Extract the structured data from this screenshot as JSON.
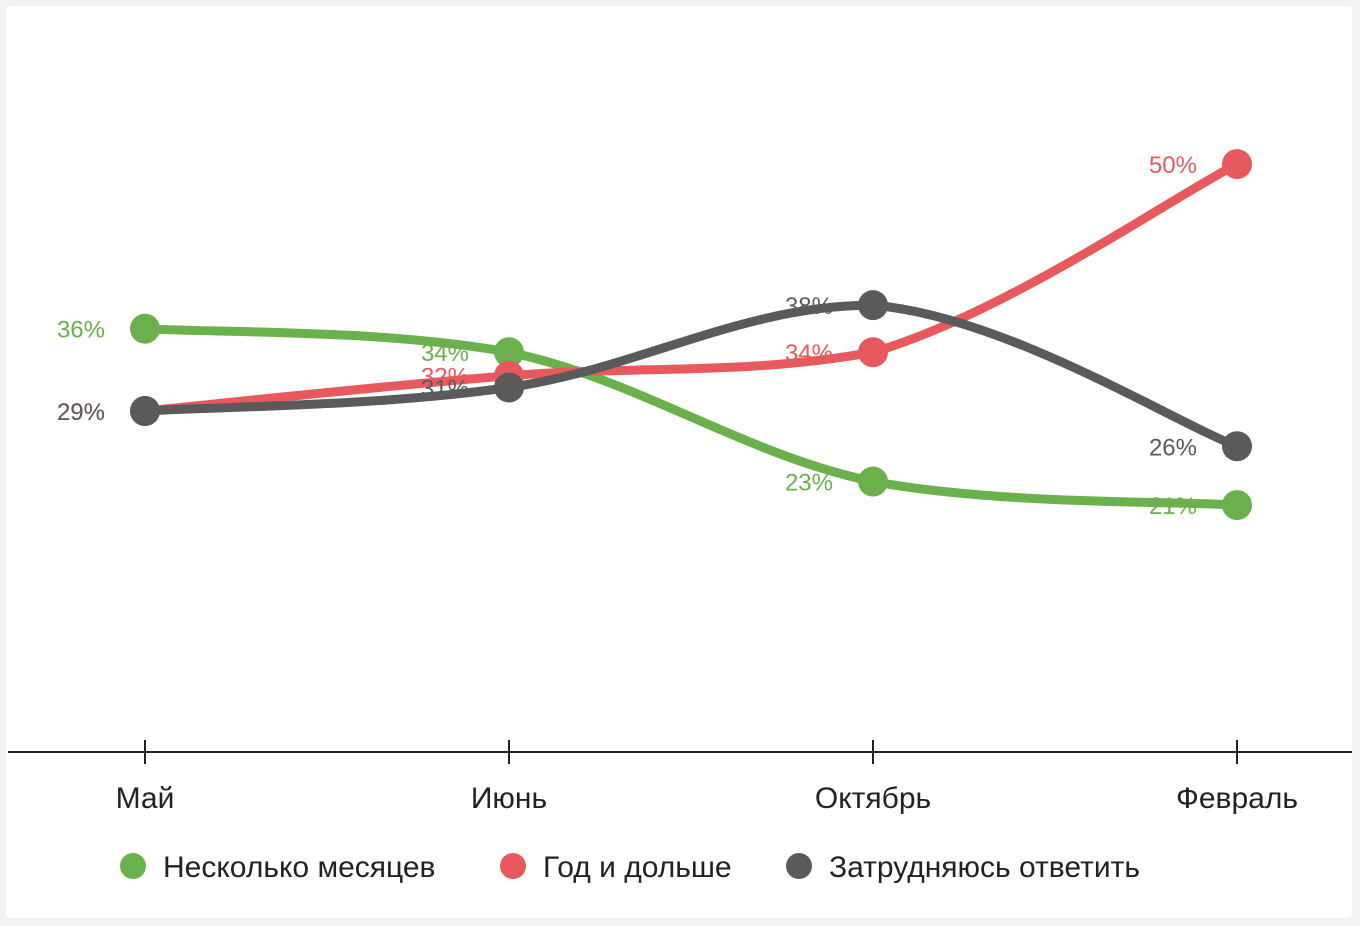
{
  "chart_data": {
    "type": "line",
    "categories": [
      "Май",
      "Июнь",
      "Октябрь",
      "Февраль"
    ],
    "series": [
      {
        "name": "Несколько месяцев",
        "color": "#6ab04c",
        "values": [
          36,
          34,
          23,
          21
        ]
      },
      {
        "name": "Год и дольше",
        "color": "#e8595e",
        "values": [
          29,
          32,
          34,
          50
        ]
      },
      {
        "name": "Затрудняюсь ответить",
        "color": "#5a5a5a",
        "values": [
          29,
          31,
          38,
          26
        ]
      }
    ],
    "value_suffix": "%",
    "ylim": [
      0,
      58
    ],
    "grid": false,
    "legend": "bottom",
    "smooth": true
  }
}
